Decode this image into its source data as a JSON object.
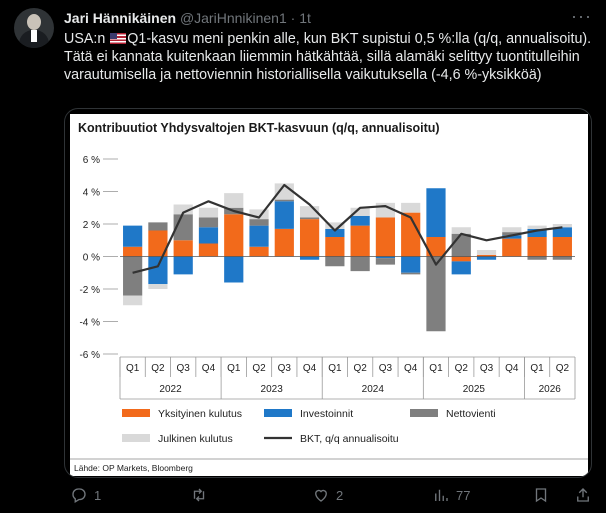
{
  "tweet": {
    "author_name": "Jari Hännikäinen",
    "handle": "@JariHnnikinen1",
    "dot": "·",
    "time": "1t",
    "text_before_flag": "USA:n ",
    "text_after_flag": "Q1-kasvu meni penkin alle, kun BKT supistui 0,5 %:lla (q/q, annualisoitu). Tätä ei kannata kuitenkaan liiemmin hätkähtää, sillä alamäki selittyy tuontitulleihin varautumisella ja nettoviennin historiallisella vaikutuksella (-4,6 %-yksikköä)",
    "more_icon": "more-horizontal-icon"
  },
  "actions": {
    "reply_count": "1",
    "retweet_count": "",
    "like_count": "2",
    "views_count": "77",
    "colors": {
      "muted": "#71767b"
    }
  },
  "chart_data": {
    "type": "bar",
    "title": "Kontribuutiot Yhdysvaltojen BKT-kasvuun (q/q, annualisoitu)",
    "ylim": [
      -6,
      6
    ],
    "yticks": [
      6,
      4,
      2,
      0,
      -2,
      -4,
      -6
    ],
    "ytick_labels": [
      "6 %",
      "4 %",
      "2 %",
      "0 %",
      "-2 %",
      "-4 %",
      "-6 %"
    ],
    "categories": [
      "Q1",
      "Q2",
      "Q3",
      "Q4",
      "Q1",
      "Q2",
      "Q3",
      "Q4",
      "Q1",
      "Q2",
      "Q3",
      "Q4",
      "Q1",
      "Q2",
      "Q3",
      "Q4",
      "Q1",
      "Q2"
    ],
    "years": [
      {
        "label": "2022",
        "start": 0,
        "end": 4
      },
      {
        "label": "2023",
        "start": 4,
        "end": 8
      },
      {
        "label": "2024",
        "start": 8,
        "end": 12
      },
      {
        "label": "2025",
        "start": 12,
        "end": 16
      },
      {
        "label": "2026",
        "start": 16,
        "end": 18
      }
    ],
    "series": [
      {
        "name": "Yksityinen kulutus",
        "color": "#f26a1b",
        "values": [
          0.6,
          1.6,
          1.0,
          0.8,
          2.6,
          0.6,
          1.7,
          2.3,
          1.2,
          1.9,
          2.4,
          2.7,
          1.2,
          -0.3,
          0.1,
          1.1,
          1.2,
          1.2
        ]
      },
      {
        "name": "Investoinnit",
        "color": "#1f78c8",
        "values": [
          1.3,
          -1.7,
          -1.1,
          1.0,
          -1.6,
          1.3,
          1.7,
          -0.2,
          0.5,
          0.6,
          -0.1,
          -1.0,
          3.0,
          -0.8,
          -0.2,
          0.2,
          0.5,
          0.6
        ]
      },
      {
        "name": "Nettovienti",
        "color": "#7f7f7f",
        "values": [
          -2.4,
          0.5,
          1.6,
          0.6,
          0.4,
          0.4,
          0.1,
          0.1,
          -0.6,
          -0.9,
          -0.4,
          -0.1,
          -4.6,
          1.4,
          0.0,
          0.2,
          -0.2,
          -0.2
        ]
      },
      {
        "name": "Julkinen kulutus",
        "color": "#d9d9d9",
        "values": [
          -0.6,
          -0.3,
          0.6,
          0.6,
          0.9,
          0.6,
          1.0,
          0.7,
          0.4,
          0.5,
          0.9,
          0.6,
          0.0,
          0.4,
          0.3,
          0.3,
          0.2,
          0.2
        ]
      },
      {
        "name": "BKT, q/q annualisoitu",
        "color": "#333333",
        "type": "line",
        "values": [
          -1.0,
          -0.6,
          2.7,
          3.4,
          2.8,
          2.4,
          4.4,
          3.2,
          1.6,
          3.0,
          3.1,
          2.4,
          -0.5,
          1.4,
          1.0,
          1.3,
          1.6,
          1.8
        ]
      }
    ],
    "legend": [
      {
        "name": "Yksityinen kulutus",
        "kind": "rect",
        "color": "#f26a1b"
      },
      {
        "name": "Investoinnit",
        "kind": "rect",
        "color": "#1f78c8"
      },
      {
        "name": "Nettovienti",
        "kind": "rect",
        "color": "#7f7f7f"
      },
      {
        "name": "Julkinen kulutus",
        "kind": "rect",
        "color": "#d9d9d9"
      },
      {
        "name": "BKT, q/q annualisoitu",
        "kind": "line",
        "color": "#333333"
      }
    ],
    "legend_position": "bottom",
    "source": "Lähde: OP Markets, Bloomberg"
  }
}
